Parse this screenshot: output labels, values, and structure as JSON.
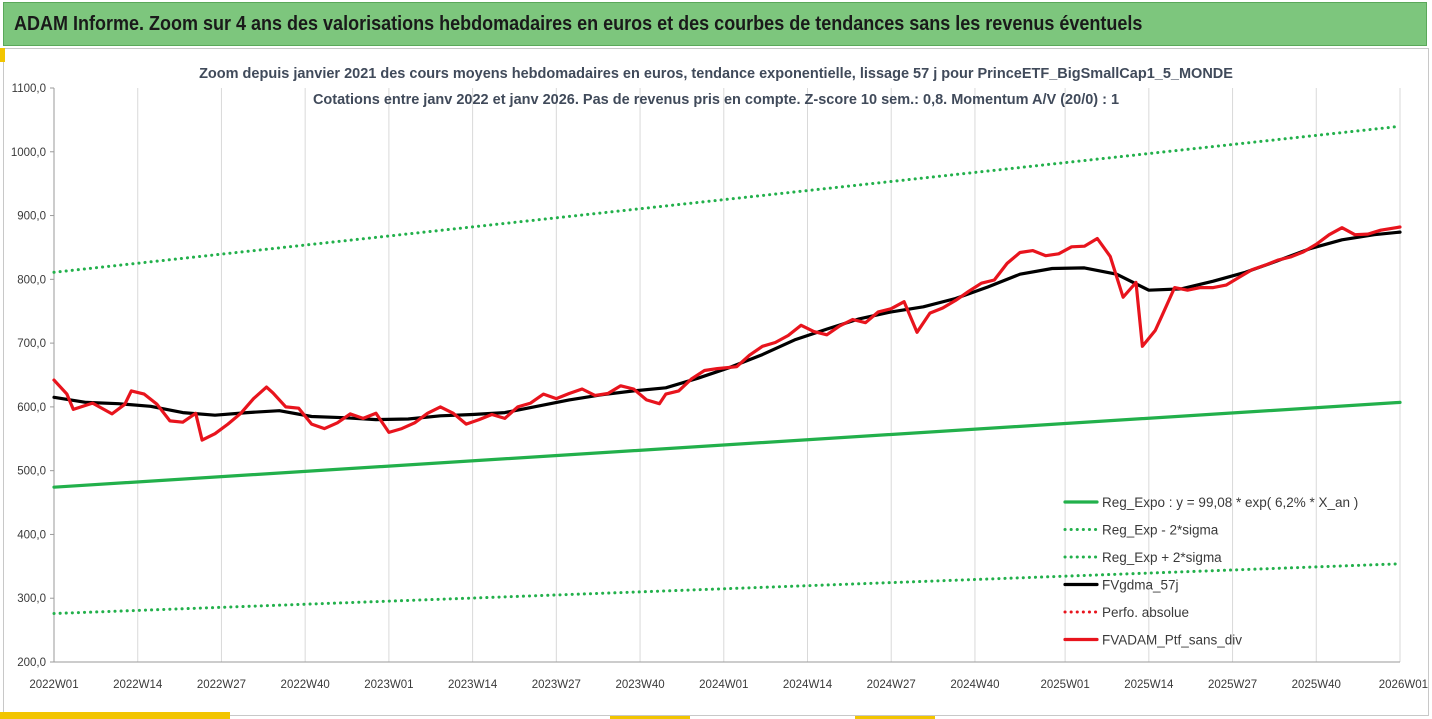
{
  "banner": {
    "title": "ADAM Informe. Zoom sur 4 ans des valorisations hebdomadaires en euros et des courbes de tendances sans les revenus éventuels"
  },
  "chart_data": {
    "type": "line",
    "title": "Zoom depuis janvier 2021 des cours moyens hebdomadaires  en euros, tendance exponentielle, lissage 57 j pour PrinceETF_BigSmallCap1_5_MONDE",
    "subtitle": "Cotations entre janv 2022 et janv 2026. Pas de revenus pris en compte. Z-score 10 sem.: 0,8. Momentum A/V (20/0) : 1",
    "xlabel": "",
    "ylabel": "",
    "ylim": [
      200,
      1100
    ],
    "xlim": [
      0,
      209
    ],
    "grid": "vertical",
    "legend_position": "bottom-right",
    "y_ticks": [
      {
        "value": 200,
        "label": "200,0"
      },
      {
        "value": 300,
        "label": "300,0"
      },
      {
        "value": 400,
        "label": "400,0"
      },
      {
        "value": 500,
        "label": "500,0"
      },
      {
        "value": 600,
        "label": "600,0"
      },
      {
        "value": 700,
        "label": "700,0"
      },
      {
        "value": 800,
        "label": "800,0"
      },
      {
        "value": 900,
        "label": "900,0"
      },
      {
        "value": 1000,
        "label": "1000,0"
      },
      {
        "value": 1100,
        "label": "1100,0"
      }
    ],
    "x_ticks": [
      {
        "value": 0,
        "label": "2022W01"
      },
      {
        "value": 13,
        "label": "2022W14"
      },
      {
        "value": 26,
        "label": "2022W27"
      },
      {
        "value": 39,
        "label": "2022W40"
      },
      {
        "value": 52,
        "label": "2023W01"
      },
      {
        "value": 65,
        "label": "2023W14"
      },
      {
        "value": 78,
        "label": "2023W27"
      },
      {
        "value": 91,
        "label": "2023W40"
      },
      {
        "value": 104,
        "label": "2024W01"
      },
      {
        "value": 117,
        "label": "2024W14"
      },
      {
        "value": 130,
        "label": "2024W27"
      },
      {
        "value": 143,
        "label": "2024W40"
      },
      {
        "value": 157,
        "label": "2025W01"
      },
      {
        "value": 170,
        "label": "2025W14"
      },
      {
        "value": 183,
        "label": "2025W27"
      },
      {
        "value": 196,
        "label": "2025W40"
      },
      {
        "value": 209,
        "label": "2026W01"
      }
    ],
    "series": [
      {
        "name": "Reg_Expo : y = 99,08 * exp( 6,2% *  X_an )",
        "color": "#22b04b",
        "style": "solid",
        "x": [
          0,
          209
        ],
        "y": [
          474,
          607
        ]
      },
      {
        "name": "Reg_Exp - 2*sigma",
        "color": "#22b04b",
        "style": "dotted",
        "x": [
          0,
          209
        ],
        "y": [
          276,
          354
        ]
      },
      {
        "name": "Reg_Exp + 2*sigma",
        "color": "#22b04b",
        "style": "dotted",
        "x": [
          0,
          209
        ],
        "y": [
          811,
          1040
        ]
      },
      {
        "name": "FVgdma_57j",
        "color": "#000000",
        "style": "solid",
        "x": [
          0,
          5,
          10,
          15,
          20,
          25,
          30,
          35,
          40,
          45,
          50,
          55,
          60,
          65,
          70,
          75,
          80,
          85,
          90,
          95,
          100,
          105,
          110,
          115,
          120,
          125,
          130,
          135,
          140,
          145,
          150,
          155,
          160,
          165,
          170,
          175,
          180,
          185,
          190,
          195,
          200,
          205,
          209
        ],
        "y": [
          615,
          607,
          605,
          601,
          591,
          587,
          591,
          594,
          585,
          583,
          580,
          581,
          586,
          588,
          591,
          601,
          611,
          619,
          625,
          630,
          645,
          662,
          682,
          705,
          722,
          738,
          749,
          757,
          770,
          788,
          808,
          817,
          818,
          808,
          783,
          785,
          797,
          811,
          829,
          848,
          862,
          870,
          874
        ]
      },
      {
        "name": "Perfo. absolue",
        "color": "#e8141d",
        "style": "dotted",
        "x": [],
        "y": []
      },
      {
        "name": "FVADAM_Ptf_sans_div",
        "color": "#e8141d",
        "style": "solid",
        "x": [
          0,
          2,
          3,
          6,
          9,
          11,
          12,
          14,
          16,
          18,
          20,
          22,
          23,
          25,
          27,
          29,
          31,
          33,
          34,
          36,
          38,
          40,
          42,
          44,
          46,
          48,
          50,
          52,
          54,
          56,
          58,
          60,
          62,
          64,
          66,
          68,
          70,
          72,
          74,
          76,
          78,
          80,
          82,
          84,
          86,
          88,
          90,
          92,
          94,
          95,
          97,
          99,
          101,
          103,
          106,
          108,
          110,
          112,
          114,
          116,
          118,
          120,
          122,
          124,
          126,
          128,
          130,
          132,
          134,
          136,
          138,
          140,
          142,
          144,
          146,
          148,
          150,
          152,
          154,
          156,
          158,
          160,
          162,
          164,
          166,
          168,
          169,
          171,
          172,
          174,
          176,
          178,
          180,
          182,
          184,
          186,
          188,
          190,
          192,
          194,
          196,
          198,
          200,
          202,
          204,
          206,
          209
        ],
        "y": [
          642,
          620,
          596,
          606,
          589,
          604,
          625,
          620,
          604,
          578,
          576,
          590,
          548,
          558,
          573,
          590,
          613,
          631,
          622,
          600,
          598,
          573,
          566,
          575,
          589,
          582,
          590,
          560,
          566,
          575,
          590,
          600,
          590,
          573,
          580,
          588,
          582,
          600,
          606,
          620,
          613,
          621,
          628,
          618,
          621,
          633,
          628,
          611,
          605,
          620,
          625,
          644,
          657,
          660,
          663,
          681,
          695,
          701,
          712,
          728,
          718,
          713,
          727,
          737,
          732,
          749,
          754,
          765,
          717,
          747,
          755,
          767,
          781,
          794,
          799,
          825,
          842,
          845,
          837,
          840,
          851,
          852,
          864,
          836,
          772,
          795,
          695,
          720,
          742,
          787,
          783,
          787,
          787,
          791,
          803,
          815,
          822,
          830,
          835,
          843,
          855,
          870,
          881,
          870,
          871,
          877,
          882
        ]
      }
    ]
  }
}
